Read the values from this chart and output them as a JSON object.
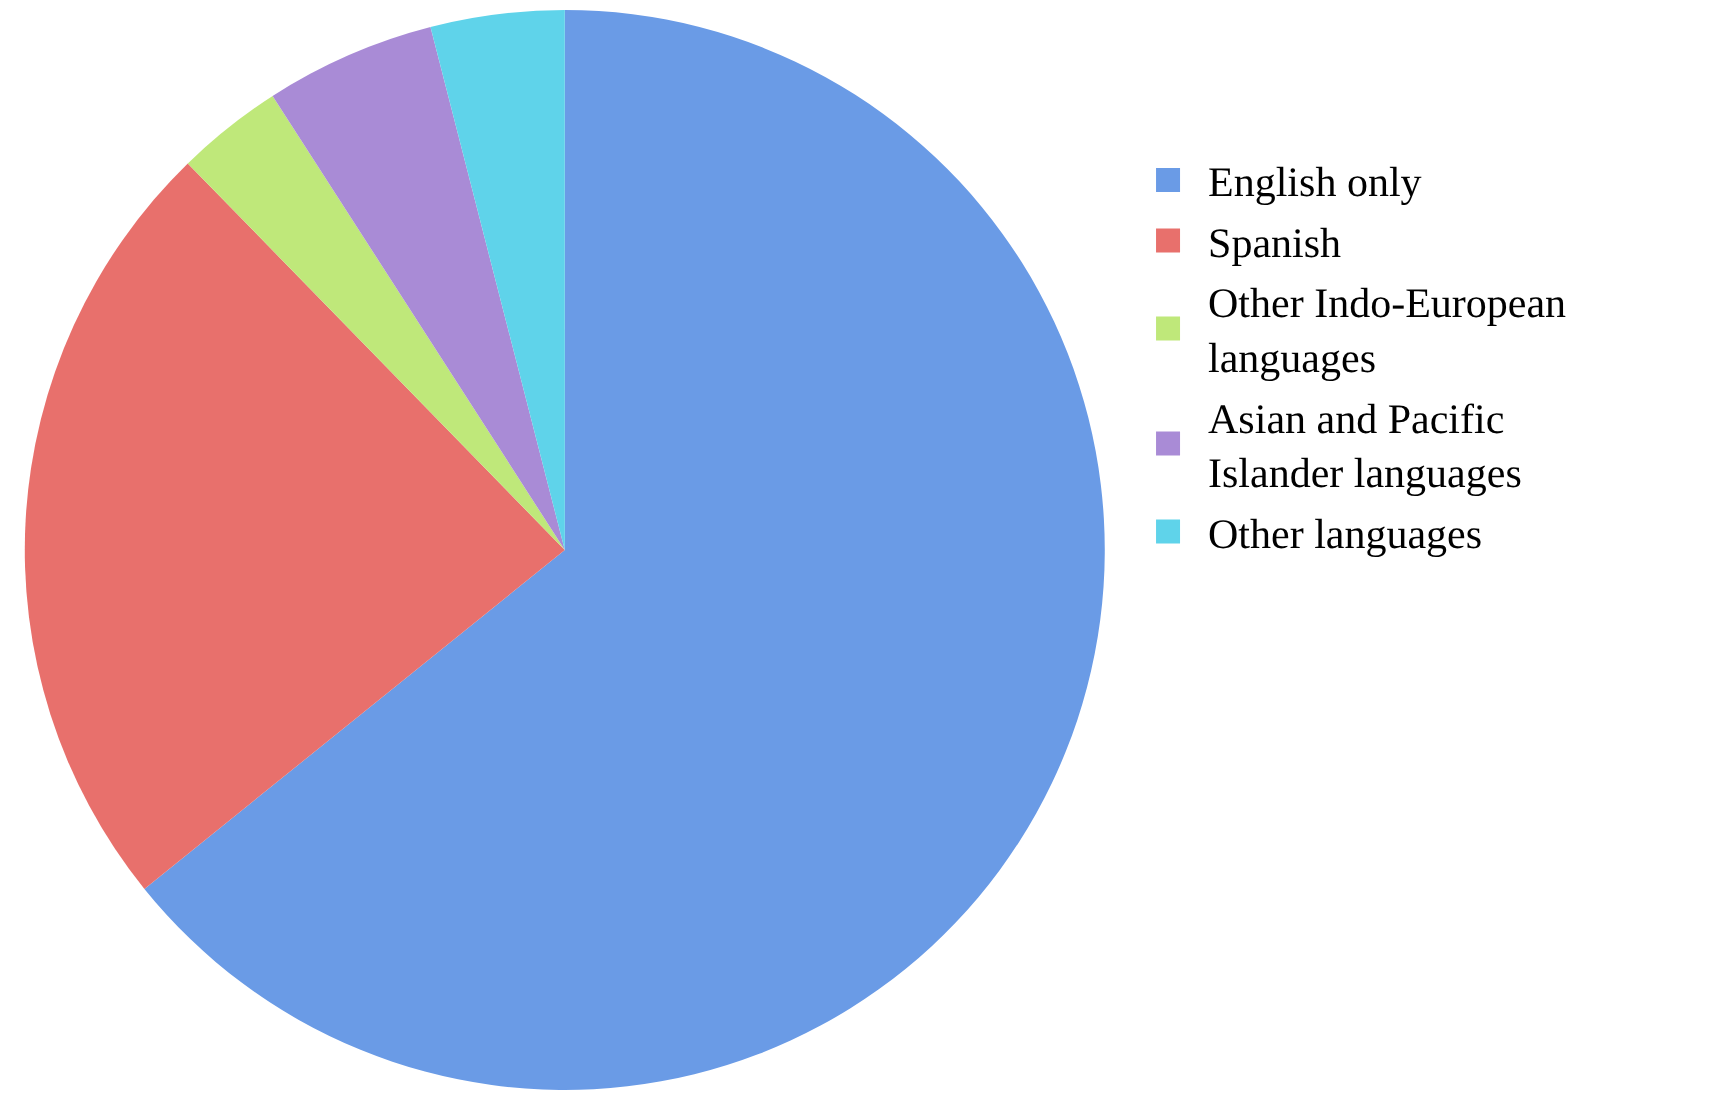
{
  "chart_data": {
    "type": "pie",
    "categories": [
      "English only",
      "Spanish",
      "Other Indo-European languages",
      "Asian and Pacific Islander languages",
      "Other languages"
    ],
    "values": [
      64.2,
      23.5,
      3.2,
      5.1,
      4.0
    ],
    "colors": [
      "#6a9be6",
      "#e8706c",
      "#bfe87a",
      "#a98bd6",
      "#5fd3ea"
    ],
    "legend": "right"
  }
}
